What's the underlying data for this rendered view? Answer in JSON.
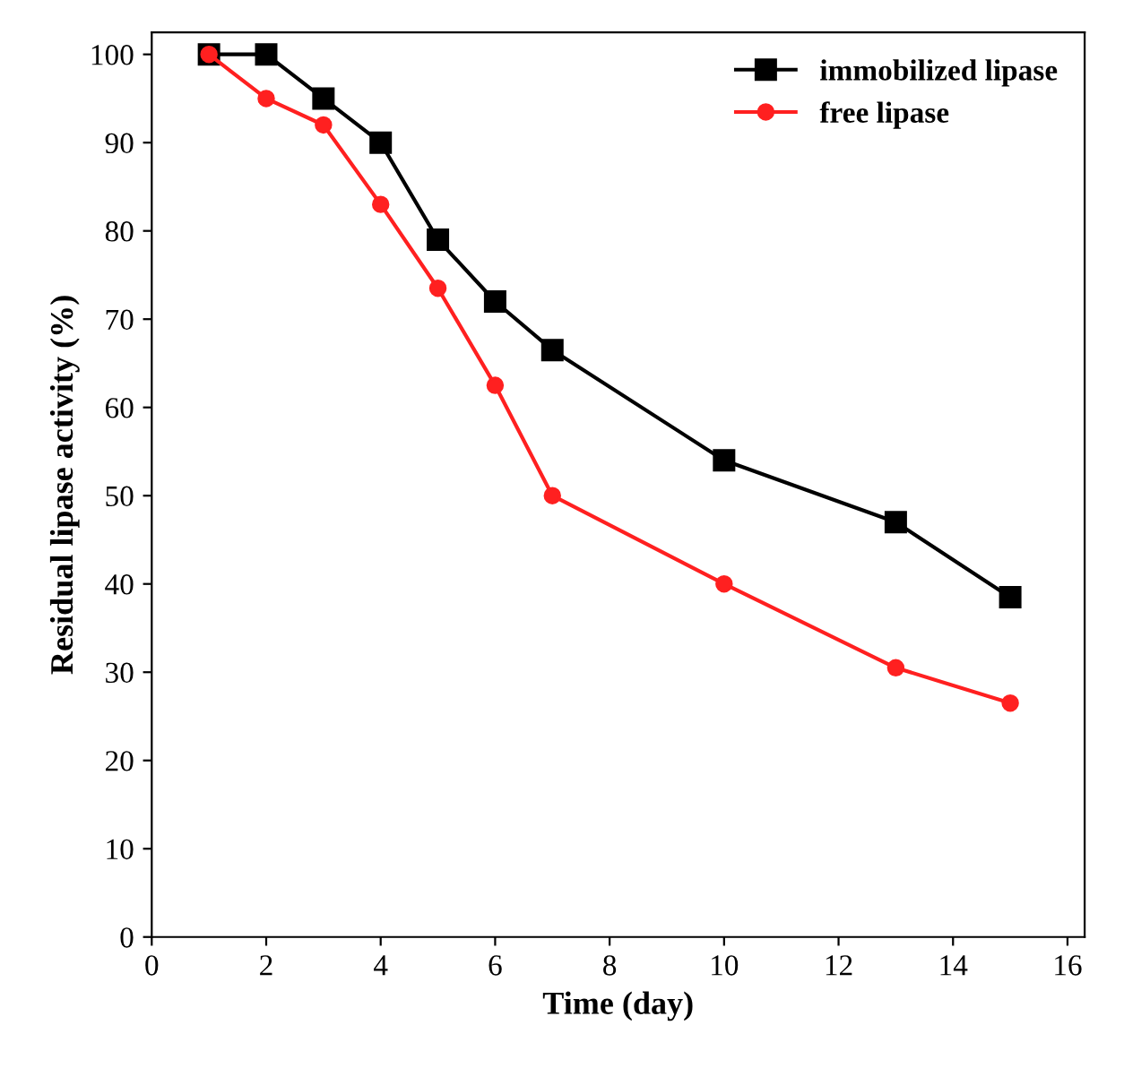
{
  "chart_data": {
    "type": "line",
    "xlabel": "Time (day)",
    "ylabel": "Residual lipase activity (%)",
    "xlim": [
      0,
      16.3
    ],
    "xticks": [
      0,
      2,
      4,
      6,
      8,
      10,
      12,
      14,
      16
    ],
    "ylim": [
      0,
      102.5
    ],
    "yticks": [
      0,
      10,
      20,
      30,
      40,
      50,
      60,
      70,
      80,
      90,
      100
    ],
    "x": [
      1,
      2,
      3,
      4,
      5,
      6,
      7,
      10,
      13,
      15
    ],
    "grid": false,
    "legend": "top right",
    "line_style": "solid",
    "series": [
      {
        "name": "immobilized lipase",
        "color": "#000000",
        "marker": "square",
        "values": [
          100,
          100,
          95,
          90,
          79,
          72,
          66.5,
          54,
          47,
          38.5
        ]
      },
      {
        "name": "free lipase",
        "color": "#ff2020",
        "marker": "circle",
        "values": [
          100,
          95,
          92,
          83,
          73.5,
          62.5,
          50,
          40,
          30.5,
          26.5
        ]
      }
    ]
  }
}
